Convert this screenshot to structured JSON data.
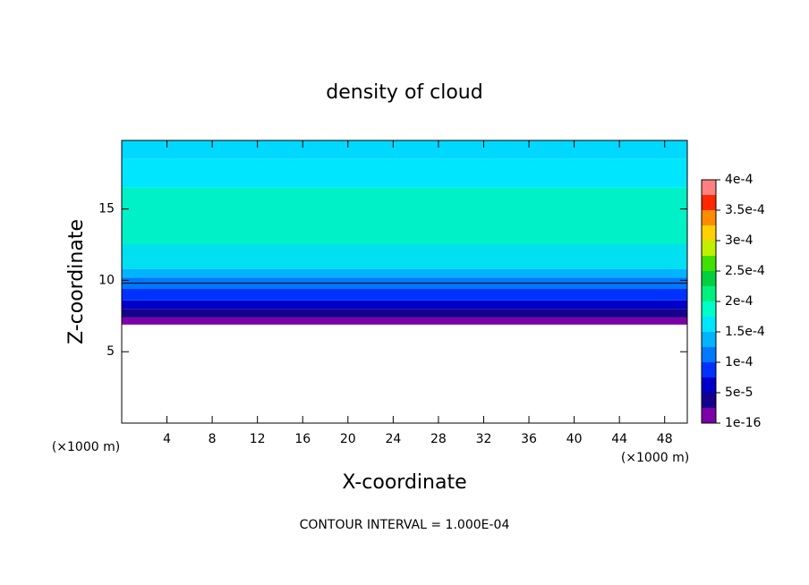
{
  "chart_data": {
    "type": "contour",
    "title": "density of cloud",
    "x_label": "X-coordinate",
    "y_label": "Z-coordinate",
    "x_unit": "(×1000 m)",
    "y_unit": "(×1000 m)",
    "footnote": "CONTOUR INTERVAL = 1.000E-04",
    "xlim": [
      0,
      50
    ],
    "ylim": [
      0,
      19.8
    ],
    "xticks": [
      4,
      8,
      12,
      16,
      20,
      24,
      28,
      32,
      36,
      40,
      44,
      48
    ],
    "yticks": [
      5,
      10,
      15
    ],
    "bands": [
      {
        "zmin": 6.9,
        "zmax": 7.4,
        "color": "#7b00a8"
      },
      {
        "zmin": 7.4,
        "zmax": 8.0,
        "color": "#15008c"
      },
      {
        "zmin": 8.0,
        "zmax": 8.6,
        "color": "#0000c8"
      },
      {
        "zmin": 8.6,
        "zmax": 9.4,
        "color": "#0032ff"
      },
      {
        "zmin": 9.4,
        "zmax": 10.2,
        "color": "#0078ff"
      },
      {
        "zmin": 10.2,
        "zmax": 10.8,
        "color": "#00b4ff"
      },
      {
        "zmin": 10.8,
        "zmax": 12.5,
        "color": "#00e0f0"
      },
      {
        "zmin": 12.5,
        "zmax": 16.5,
        "color": "#00f0c8"
      },
      {
        "zmin": 16.5,
        "zmax": 18.5,
        "color": "#00e6ff"
      },
      {
        "zmin": 18.5,
        "zmax": 19.8,
        "color": "#00d8ff"
      }
    ],
    "contour_line_z": 9.8,
    "colorbar": {
      "lim": [
        0,
        0.0004
      ],
      "colors": [
        "#7b00a8",
        "#15008c",
        "#0000c8",
        "#0032ff",
        "#0078ff",
        "#00b4ff",
        "#00e6ff",
        "#00ffc8",
        "#00f080",
        "#00d040",
        "#40e000",
        "#c0f000",
        "#ffd000",
        "#ff8c00",
        "#ff2800",
        "#ff8080"
      ],
      "ticks": [
        {
          "value": 1e-16,
          "label": "1e-16"
        },
        {
          "value": 5e-05,
          "label": "5e-5"
        },
        {
          "value": 0.0001,
          "label": "1e-4"
        },
        {
          "value": 0.00015,
          "label": "1.5e-4"
        },
        {
          "value": 0.0002,
          "label": "2e-4"
        },
        {
          "value": 0.00025,
          "label": "2.5e-4"
        },
        {
          "value": 0.0003,
          "label": "3e-4"
        },
        {
          "value": 0.00035,
          "label": "3.5e-4"
        },
        {
          "value": 0.0004,
          "label": "4e-4"
        }
      ]
    }
  }
}
